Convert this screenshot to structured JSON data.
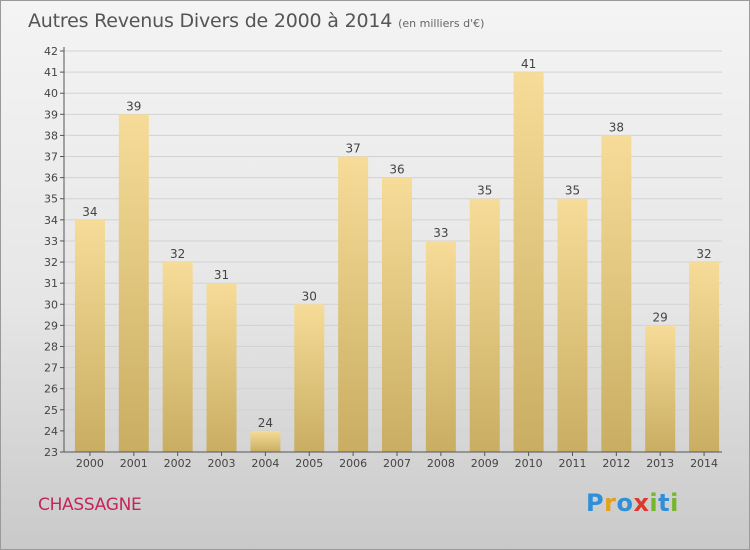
{
  "header": {
    "title": "Autres Revenus Divers de 2000 à 2014",
    "subtitle": "(en milliers d'€)"
  },
  "footer": {
    "town": "CHASSAGNE",
    "brand": "Proxiti",
    "brand_letters": [
      {
        "ch": "P",
        "color": "#2f8fd8"
      },
      {
        "ch": "r",
        "color": "#e2a21c"
      },
      {
        "ch": "o",
        "color": "#2f8fd8"
      },
      {
        "ch": "x",
        "color": "#d93a2b"
      },
      {
        "ch": "i",
        "color": "#74b62e"
      },
      {
        "ch": "t",
        "color": "#2f8fd8"
      },
      {
        "ch": "i",
        "color": "#74b62e"
      }
    ]
  },
  "colors": {
    "bar_top": "#f6dc98",
    "bar_bottom": "#c9ad62",
    "town": "#c5255a"
  },
  "chart_data": {
    "type": "bar",
    "title": "Autres Revenus Divers de 2000 à 2014",
    "subtitle": "(en milliers d'€)",
    "categories": [
      "2000",
      "2001",
      "2002",
      "2003",
      "2004",
      "2005",
      "2006",
      "2007",
      "2008",
      "2009",
      "2010",
      "2011",
      "2012",
      "2013",
      "2014"
    ],
    "values": [
      34,
      39,
      32,
      31,
      24,
      30,
      37,
      36,
      33,
      35,
      41,
      35,
      38,
      29,
      32
    ],
    "ylim": [
      23,
      42
    ],
    "yticks": [
      23,
      24,
      25,
      26,
      27,
      28,
      29,
      30,
      31,
      32,
      33,
      34,
      35,
      36,
      37,
      38,
      39,
      40,
      41,
      42
    ],
    "grid": "horizontal",
    "data_labels": true,
    "xlabel": "",
    "ylabel": ""
  }
}
